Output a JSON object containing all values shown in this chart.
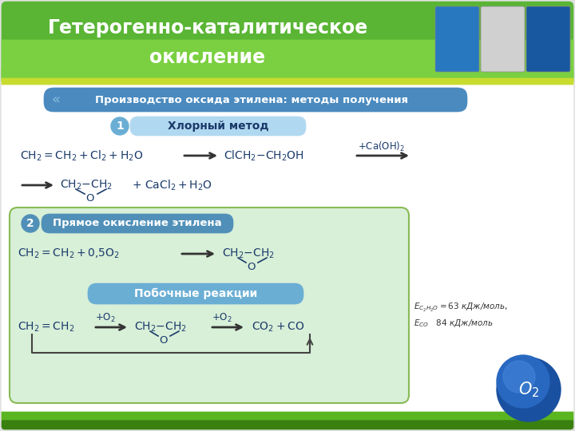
{
  "title_line1": "Гетерогенно-каталитическое",
  "title_line2": "окисление",
  "title_bg_top": "#4aaa30",
  "title_bg_bot": "#7acc50",
  "title_text_color": "#ffffff",
  "subtitle_text": "Производство оксида этилена: методы получения",
  "subtitle_bg": "#4a8abf",
  "subtitle_text_color": "#ffffff",
  "section1_title": "Хлорный метод",
  "section1_label_bg": "#6aaed4",
  "section1_title_bg": "#b0d8f0",
  "section2_title": "Прямое окисление этилена",
  "section2_label_bg": "#5090b8",
  "section2_title_bg": "#5090b8",
  "section2_box_bg": "#d8efd8",
  "section2_box_border": "#88bb55",
  "side_label": "Побочные реакции",
  "side_label_bg": "#6aaed4",
  "bg_color": "#e8e8e8",
  "white": "#ffffff",
  "chem_color": "#1a3a6a",
  "arrow_color": "#333333",
  "green_strip": "#c8dc20",
  "dark_green": "#3a8010",
  "footer_green": "#3a8010",
  "o2_color": "#2860b0"
}
